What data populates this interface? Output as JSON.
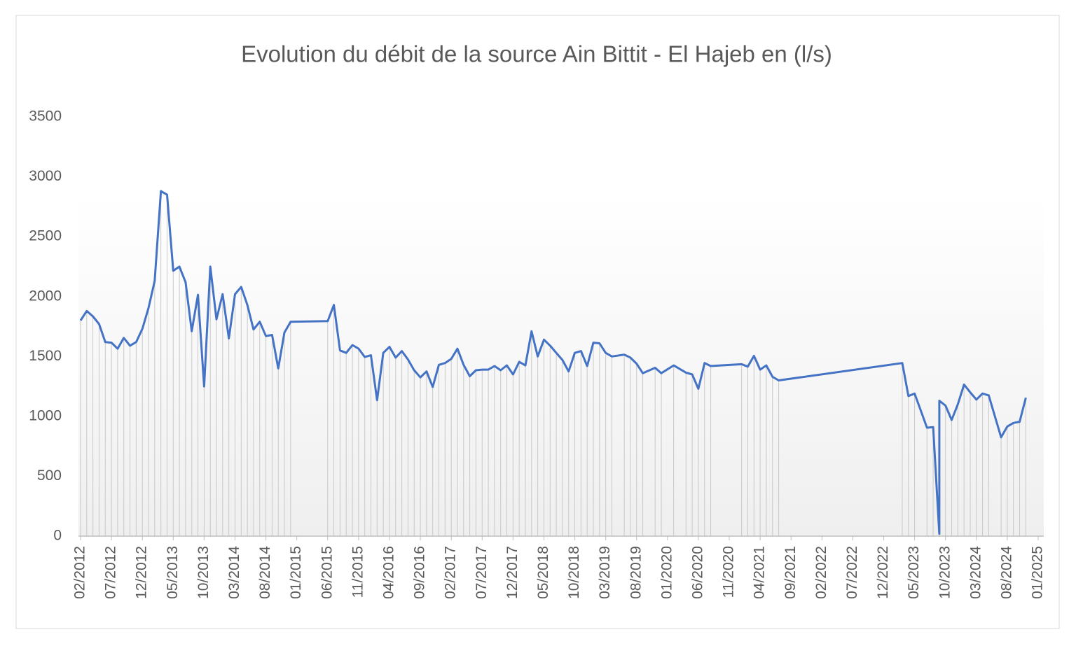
{
  "chart_data": {
    "type": "line",
    "title": "Evolution du débit de la source Ain Bittit - El Hajeb en (l/s)",
    "x": [
      "02/2012",
      "03/2012",
      "04/2012",
      "05/2012",
      "06/2012",
      "07/2012",
      "08/2012",
      "09/2012",
      "10/2012",
      "11/2012",
      "12/2012",
      "01/2013",
      "02/2013",
      "03/2013",
      "04/2013",
      "05/2013",
      "06/2013",
      "07/2013",
      "08/2013",
      "09/2013",
      "10/2013",
      "11/2013",
      "12/2013",
      "01/2014",
      "02/2014",
      "03/2014",
      "04/2014",
      "05/2014",
      "06/2014",
      "07/2014",
      "08/2014",
      "09/2014",
      "10/2014",
      "11/2014",
      "12/2014",
      "06/2015",
      "07/2015",
      "08/2015",
      "09/2015",
      "10/2015",
      "11/2015",
      "12/2015",
      "01/2016",
      "02/2016",
      "03/2016",
      "04/2016",
      "05/2016",
      "06/2016",
      "07/2016",
      "08/2016",
      "09/2016",
      "10/2016",
      "11/2016",
      "12/2016",
      "01/2017",
      "02/2017",
      "03/2017",
      "04/2017",
      "05/2017",
      "06/2017",
      "07/2017",
      "08/2017",
      "09/2017",
      "10/2017",
      "11/2017",
      "12/2017",
      "01/2018",
      "02/2018",
      "03/2018",
      "04/2018",
      "05/2018",
      "06/2018",
      "07/2018",
      "08/2018",
      "09/2018",
      "10/2018",
      "11/2018",
      "12/2018",
      "01/2019",
      "02/2019",
      "03/2019",
      "04/2019",
      "06/2019",
      "07/2019",
      "08/2019",
      "09/2019",
      "11/2019",
      "12/2019",
      "02/2020",
      "04/2020",
      "05/2020",
      "06/2020",
      "07/2020",
      "08/2020",
      "01/2021",
      "02/2021",
      "03/2021",
      "04/2021",
      "05/2021",
      "06/2021",
      "07/2021",
      "03/2023",
      "04/2023",
      "05/2023",
      "07/2023",
      "08/2023",
      "09/2023",
      "09/2023",
      "10/2023",
      "11/2023",
      "12/2023",
      "01/2024",
      "02/2024",
      "03/2024",
      "04/2024",
      "05/2024",
      "07/2024",
      "08/2024",
      "09/2024",
      "10/2024",
      "11/2024"
    ],
    "values": [
      1800,
      1880,
      1835,
      1770,
      1620,
      1615,
      1565,
      1655,
      1590,
      1620,
      1730,
      1905,
      2130,
      2880,
      2850,
      2215,
      2250,
      2120,
      1710,
      2015,
      1250,
      2250,
      1810,
      2020,
      1650,
      2020,
      2080,
      1930,
      1725,
      1790,
      1670,
      1680,
      1400,
      1700,
      1790,
      1795,
      1930,
      1550,
      1530,
      1595,
      1565,
      1495,
      1510,
      1135,
      1530,
      1580,
      1490,
      1545,
      1475,
      1385,
      1325,
      1375,
      1245,
      1430,
      1445,
      1480,
      1565,
      1430,
      1335,
      1385,
      1390,
      1390,
      1420,
      1385,
      1425,
      1350,
      1455,
      1425,
      1710,
      1500,
      1640,
      1590,
      1530,
      1470,
      1375,
      1530,
      1545,
      1420,
      1615,
      1610,
      1530,
      1500,
      1515,
      1490,
      1440,
      1360,
      1405,
      1360,
      1425,
      1365,
      1350,
      1230,
      1445,
      1420,
      1435,
      1415,
      1505,
      1390,
      1425,
      1330,
      1300,
      1445,
      1170,
      1190,
      905,
      910,
      20,
      1130,
      1090,
      970,
      1100,
      1265,
      1200,
      1140,
      1190,
      1175,
      825,
      915,
      945,
      955,
      1155
    ],
    "color": "#4472c4",
    "xlim": [
      "02/2012",
      "01/2025"
    ],
    "xticks": [
      "02/2012",
      "07/2012",
      "12/2012",
      "05/2013",
      "10/2013",
      "03/2014",
      "08/2014",
      "01/2015",
      "06/2015",
      "11/2015",
      "04/2016",
      "09/2016",
      "02/2017",
      "07/2017",
      "12/2017",
      "05/2018",
      "10/2018",
      "03/2019",
      "08/2019",
      "01/2020",
      "06/2020",
      "11/2020",
      "04/2021",
      "09/2021",
      "02/2022",
      "07/2022",
      "12/2022",
      "05/2023",
      "10/2023",
      "03/2024",
      "08/2024",
      "01/2025"
    ],
    "ylim": [
      0,
      3500
    ],
    "yticks": [
      0,
      500,
      1000,
      1500,
      2000,
      2500,
      3000,
      3500
    ],
    "grid": false,
    "drop_lines": true
  }
}
